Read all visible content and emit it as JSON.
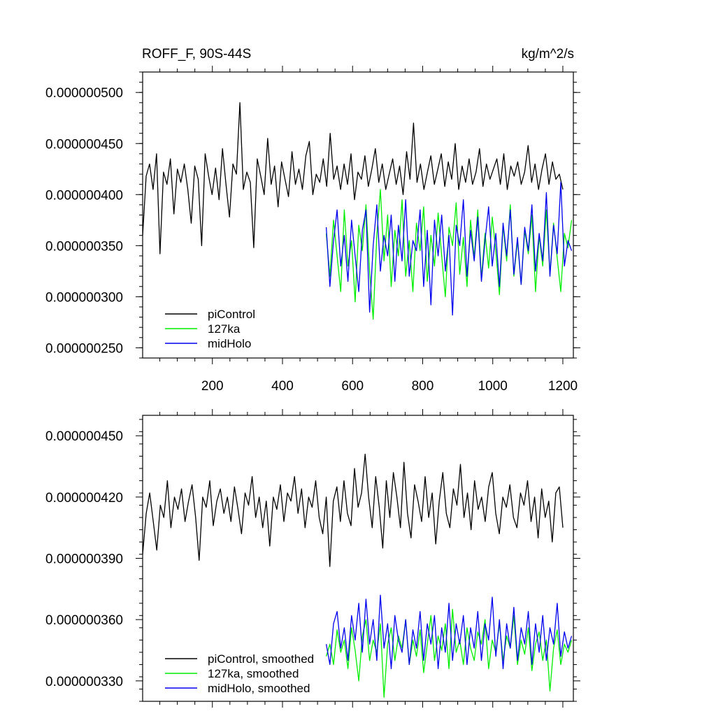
{
  "chart_data": [
    {
      "type": "line",
      "title_left": "ROFF_F, 90S-44S",
      "title_right": "kg/m^2/s",
      "xlim": [
        1,
        1230
      ],
      "ylim": [
        2.4e-07,
        5.2e-07
      ],
      "xticks": [
        200,
        400,
        600,
        800,
        1000,
        1200
      ],
      "xtick_labels": [
        "200",
        "400",
        "600",
        "800",
        "1000",
        "1200"
      ],
      "yticks": [
        2.5e-07,
        3e-07,
        3.5e-07,
        4e-07,
        4.5e-07,
        5e-07
      ],
      "ytick_labels": [
        "0.000000250",
        "0.000000300",
        "0.000000350",
        "0.000000400",
        "0.000000450",
        "0.000000500"
      ],
      "legend": "bottom-left",
      "series": [
        {
          "name": "piControl",
          "color": "#000000",
          "x_start": 1,
          "x_end": 1200,
          "values": [
            3.6e-07,
            4.18e-07,
            4.3e-07,
            4.05e-07,
            4.4e-07,
            3.42e-07,
            4.22e-07,
            4.1e-07,
            4.35e-07,
            3.81e-07,
            4.25e-07,
            4.12e-07,
            4.3e-07,
            4.05e-07,
            3.72e-07,
            4.28e-07,
            4.15e-07,
            3.5e-07,
            4.4e-07,
            4.18e-07,
            4e-07,
            4.26e-07,
            3.95e-07,
            4.45e-07,
            4.1e-07,
            3.78e-07,
            4.3e-07,
            4.2e-07,
            4.9e-07,
            4.05e-07,
            4.22e-07,
            4.12e-07,
            3.48e-07,
            4.35e-07,
            4.18e-07,
            4e-07,
            4.55e-07,
            4.1e-07,
            4.28e-07,
            3.88e-07,
            4.32e-07,
            4.15e-07,
            3.98e-07,
            4.42e-07,
            4.1e-07,
            4.25e-07,
            4.05e-07,
            4.38e-07,
            4.52e-07,
            4e-07,
            4.2e-07,
            4.12e-07,
            4.35e-07,
            4.08e-07,
            4.6e-07,
            4.15e-07,
            4.28e-07,
            4.05e-07,
            4.3e-07,
            4.1e-07,
            4.4e-07,
            3.95e-07,
            4.22e-07,
            4.15e-07,
            4.38e-07,
            4.08e-07,
            4.25e-07,
            4.45e-07,
            4.12e-07,
            4.3e-07,
            4.05e-07,
            4.2e-07,
            4.35e-07,
            4.1e-07,
            4.28e-07,
            4e-07,
            4.42e-07,
            4.15e-07,
            4.7e-07,
            4.12e-07,
            4.3e-07,
            4.05e-07,
            4.22e-07,
            4.38e-07,
            4.1e-07,
            4.25e-07,
            4.4e-07,
            4.08e-07,
            4.32e-07,
            4.15e-07,
            4.5e-07,
            4.05e-07,
            4.28e-07,
            4.12e-07,
            4.35e-07,
            4.1e-07,
            4.22e-07,
            4.45e-07,
            4.08e-07,
            4.3e-07,
            4.15e-07,
            4.25e-07,
            4.35e-07,
            4.1e-07,
            4.4e-07,
            4.05e-07,
            4.28e-07,
            4.18e-07,
            4.32e-07,
            4.1e-07,
            4.22e-07,
            4.48e-07,
            4.12e-07,
            4.3e-07,
            4.05e-07,
            4.25e-07,
            4.4e-07,
            4.1e-07,
            4.32e-07,
            4.15e-07,
            4.2e-07,
            4.05e-07
          ]
        },
        {
          "name": "127ka",
          "color": "#00ee00",
          "x_start": 525,
          "x_end": 1225,
          "values": [
            3.62e-07,
            3.2e-07,
            3.75e-07,
            3.4e-07,
            3.05e-07,
            3.85e-07,
            3.3e-07,
            3.55e-07,
            2.95e-07,
            3.7e-07,
            3.45e-07,
            3.9e-07,
            3.25e-07,
            2.78e-07,
            3.6e-07,
            4.05e-07,
            3.35e-07,
            3.8e-07,
            3.1e-07,
            3.65e-07,
            3.4e-07,
            3.95e-07,
            3.2e-07,
            3.55e-07,
            3.05e-07,
            3.72e-07,
            3.45e-07,
            3.88e-07,
            3.15e-07,
            3.6e-07,
            3.3e-07,
            3.82e-07,
            3.4e-07,
            3e-07,
            3.68e-07,
            3.5e-07,
            3.92e-07,
            3.22e-07,
            3.58e-07,
            3.1e-07,
            3.75e-07,
            3.38e-07,
            3.85e-07,
            3.18e-07,
            3.62e-07,
            3.28e-07,
            3.78e-07,
            3.45e-07,
            3.02e-07,
            3.7e-07,
            3.35e-07,
            3.9e-07,
            3.2e-07,
            3.55e-07,
            3.12e-07,
            3.65e-07,
            3.42e-07,
            3.8e-07,
            3.05e-07,
            3.6e-07,
            3.3e-07,
            3.85e-07,
            3.22e-07,
            3.72e-07,
            3.38e-07,
            3.05e-07,
            3.62e-07,
            3.48e-07,
            3.75e-07
          ]
        },
        {
          "name": "midHolo",
          "color": "#0000ee",
          "x_start": 525,
          "x_end": 1225,
          "values": [
            3.68e-07,
            3.1e-07,
            3.55e-07,
            3.85e-07,
            3.3e-07,
            3.6e-07,
            3.15e-07,
            3.75e-07,
            3.4e-07,
            3.05e-07,
            3.65e-07,
            3.85e-07,
            2.85e-07,
            3.5e-07,
            3.9e-07,
            3.25e-07,
            3.6e-07,
            3.4e-07,
            3.8e-07,
            3.15e-07,
            3.7e-07,
            3.35e-07,
            3.95e-07,
            3.2e-07,
            3.55e-07,
            3.45e-07,
            3.85e-07,
            3.1e-07,
            3.65e-07,
            2.92e-07,
            3.75e-07,
            3.4e-07,
            3.8e-07,
            3.25e-07,
            3.6e-07,
            2.82e-07,
            3.7e-07,
            3.5e-07,
            3.95e-07,
            3.2e-07,
            3.65e-07,
            3.35e-07,
            3.78e-07,
            3.15e-07,
            3.55e-07,
            3.88e-07,
            3.3e-07,
            3.62e-07,
            3.1e-07,
            3.72e-07,
            3.4e-07,
            3.85e-07,
            3.22e-07,
            3.58e-07,
            3.12e-07,
            3.68e-07,
            3.45e-07,
            3.9e-07,
            3.25e-07,
            3.62e-07,
            3.35e-07,
            4.02e-07,
            3.2e-07,
            3.7e-07,
            3.42e-07,
            4.12e-07,
            3.3e-07,
            3.55e-07,
            3.45e-07
          ]
        }
      ]
    },
    {
      "type": "line",
      "xlim": [
        1,
        1230
      ],
      "ylim": [
        3.2e-07,
        4.6e-07
      ],
      "xticks": [
        200,
        400,
        600,
        800,
        1000,
        1200
      ],
      "yticks": [
        3.3e-07,
        3.6e-07,
        3.9e-07,
        4.2e-07,
        4.5e-07
      ],
      "ytick_labels": [
        "0.000000330",
        "0.000000360",
        "0.000000390",
        "0.000000420",
        "0.000000450"
      ],
      "legend": "bottom-left",
      "series": [
        {
          "name": "piControl, smoothed",
          "color": "#000000",
          "x_start": 1,
          "x_end": 1200,
          "values": [
            3.92e-07,
            4.12e-07,
            4.22e-07,
            4.08e-07,
            3.94e-07,
            4.16e-07,
            4.1e-07,
            4.28e-07,
            4.05e-07,
            4.2e-07,
            4.14e-07,
            4.24e-07,
            4.08e-07,
            4.18e-07,
            4.26e-07,
            4.1e-07,
            3.89e-07,
            4.2e-07,
            4.15e-07,
            4.28e-07,
            4.06e-07,
            4.18e-07,
            4.24e-07,
            4.12e-07,
            4.2e-07,
            4.08e-07,
            4.25e-07,
            4.14e-07,
            4.02e-07,
            4.22e-07,
            4.16e-07,
            4.3e-07,
            4.1e-07,
            4.2e-07,
            4.05e-07,
            4.18e-07,
            3.96e-07,
            4.2e-07,
            4.14e-07,
            4.26e-07,
            4.08e-07,
            4.22e-07,
            4.18e-07,
            4.3e-07,
            4.12e-07,
            4.24e-07,
            4.05e-07,
            4.2e-07,
            4.15e-07,
            4.28e-07,
            4.1e-07,
            4.02e-07,
            4.2e-07,
            3.86e-07,
            4.18e-07,
            4.25e-07,
            4.08e-07,
            4.28e-07,
            4.12e-07,
            4.06e-07,
            4.34e-07,
            4.15e-07,
            4.22e-07,
            4.41e-07,
            4.2e-07,
            4.05e-07,
            4.3e-07,
            4.15e-07,
            3.95e-07,
            4.28e-07,
            4.1e-07,
            4.32e-07,
            4.2e-07,
            4.05e-07,
            4.37e-07,
            4.12e-07,
            4e-07,
            4.26e-07,
            4.18e-07,
            4.08e-07,
            4.3e-07,
            4.1e-07,
            4.22e-07,
            3.97e-07,
            4.18e-07,
            4.32e-07,
            4.12e-07,
            4.05e-07,
            4.24e-07,
            4.16e-07,
            4.36e-07,
            4.1e-07,
            4.22e-07,
            4.04e-07,
            4.28e-07,
            4.14e-07,
            4.2e-07,
            4.08e-07,
            4.25e-07,
            4.32e-07,
            4.12e-07,
            4.02e-07,
            4.2e-07,
            4.15e-07,
            4.26e-07,
            4.1e-07,
            4.05e-07,
            4.22e-07,
            4.16e-07,
            4.28e-07,
            4.08e-07,
            4.2e-07,
            4e-07,
            4.24e-07,
            4.1e-07,
            4.18e-07,
            3.98e-07,
            4.22e-07,
            4.25e-07,
            4.05e-07
          ]
        },
        {
          "name": "127ka, smoothed",
          "color": "#00ee00",
          "x_start": 525,
          "x_end": 1225,
          "values": [
            3.42e-07,
            3.48e-07,
            3.38e-07,
            3.55e-07,
            3.44e-07,
            3.5e-07,
            3.36e-07,
            3.56e-07,
            3.45e-07,
            3.3e-07,
            3.52e-07,
            3.6e-07,
            3.4e-07,
            3.5e-07,
            3.44e-07,
            3.58e-07,
            3.22e-07,
            3.48e-07,
            3.56e-07,
            3.4e-07,
            3.52e-07,
            3.46e-07,
            3.6e-07,
            3.38e-07,
            3.5e-07,
            3.42e-07,
            3.55e-07,
            3.34e-07,
            3.48e-07,
            3.62e-07,
            3.4e-07,
            3.52e-07,
            3.45e-07,
            3.58e-07,
            3.36e-07,
            3.65e-07,
            3.44e-07,
            3.5e-07,
            3.38e-07,
            3.56e-07,
            3.46e-07,
            3.4e-07,
            3.54e-07,
            3.48e-07,
            3.6e-07,
            3.36e-07,
            3.5e-07,
            3.44e-07,
            3.58e-07,
            3.4e-07,
            3.52e-07,
            3.46e-07,
            3.62e-07,
            3.38e-07,
            3.5e-07,
            3.43e-07,
            3.56e-07,
            3.35e-07,
            3.48e-07,
            3.54e-07,
            3.4e-07,
            3.5e-07,
            3.25e-07,
            3.46e-07,
            3.55e-07,
            3.38e-07,
            3.48e-07,
            3.44e-07,
            3.5e-07
          ]
        },
        {
          "name": "midHolo, smoothed",
          "color": "#0000ee",
          "x_start": 525,
          "x_end": 1225,
          "values": [
            3.48e-07,
            3.38e-07,
            3.58e-07,
            3.64e-07,
            3.46e-07,
            3.56e-07,
            3.4e-07,
            3.62e-07,
            3.5e-07,
            3.68e-07,
            3.44e-07,
            3.7e-07,
            3.48e-07,
            3.6e-07,
            3.4e-07,
            3.72e-07,
            3.46e-07,
            3.58e-07,
            3.36e-07,
            3.62e-07,
            3.5e-07,
            3.44e-07,
            3.6e-07,
            3.38e-07,
            3.55e-07,
            3.46e-07,
            3.64e-07,
            3.4e-07,
            3.58e-07,
            3.48e-07,
            3.62e-07,
            3.36e-07,
            3.56e-07,
            3.44e-07,
            3.68e-07,
            3.4e-07,
            3.58e-07,
            3.48e-07,
            3.62e-07,
            3.38e-07,
            3.56e-07,
            3.46e-07,
            3.64e-07,
            3.4e-07,
            3.58e-07,
            3.5e-07,
            3.71e-07,
            3.42e-07,
            3.6e-07,
            3.36e-07,
            3.58e-07,
            3.46e-07,
            3.66e-07,
            3.4e-07,
            3.56e-07,
            3.48e-07,
            3.64e-07,
            3.38e-07,
            3.58e-07,
            3.44e-07,
            3.62e-07,
            3.4e-07,
            3.56e-07,
            3.48e-07,
            3.68e-07,
            3.42e-07,
            3.54e-07,
            3.46e-07,
            3.52e-07
          ]
        }
      ]
    }
  ]
}
